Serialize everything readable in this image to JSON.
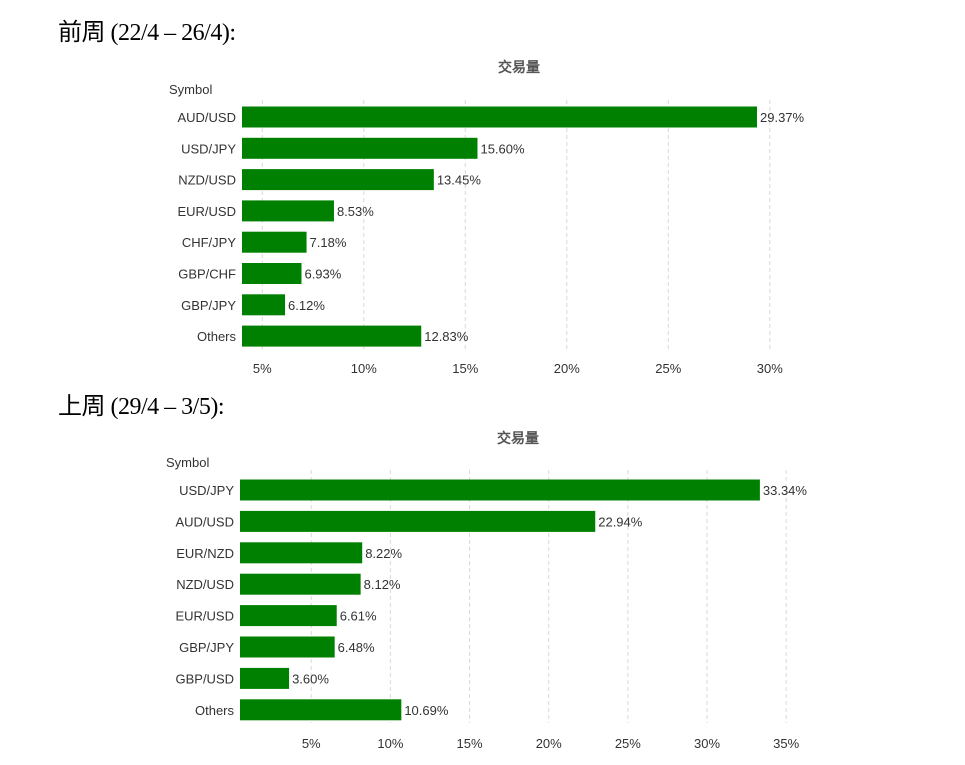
{
  "headings": {
    "previous_week": "前周 (22/4 – 26/4):",
    "last_week": "上周 (29/4 – 3/5):"
  },
  "colors": {
    "bar": "#008000",
    "grid": "#d9d9d9",
    "label": "#333333"
  },
  "chart_data": [
    {
      "type": "bar",
      "orientation": "horizontal",
      "title": "交易量",
      "ylabel": "Symbol",
      "xlabel": "",
      "unit": "%",
      "categories": [
        "AUD/USD",
        "USD/JPY",
        "NZD/USD",
        "EUR/USD",
        "CHF/JPY",
        "GBP/CHF",
        "GBP/JPY",
        "Others"
      ],
      "values": [
        29.37,
        15.6,
        13.45,
        8.53,
        7.18,
        6.93,
        6.12,
        12.83
      ],
      "value_labels": [
        "29.37%",
        "15.60%",
        "13.45%",
        "8.53%",
        "7.18%",
        "6.93%",
        "6.12%",
        "12.83%"
      ],
      "xlim": [
        4,
        30.7
      ],
      "xticks": [
        5,
        10,
        15,
        20,
        25,
        30
      ],
      "xtick_labels": [
        "5%",
        "10%",
        "15%",
        "20%",
        "25%",
        "30%"
      ],
      "grid": true,
      "legend": "none"
    },
    {
      "type": "bar",
      "orientation": "horizontal",
      "title": "交易量",
      "ylabel": "Symbol",
      "xlabel": "",
      "unit": "%",
      "categories": [
        "USD/JPY",
        "AUD/USD",
        "EUR/NZD",
        "NZD/USD",
        "EUR/USD",
        "GBP/JPY",
        "GBP/USD",
        "Others"
      ],
      "values": [
        33.34,
        22.94,
        8.22,
        8.12,
        6.61,
        6.48,
        3.6,
        10.69
      ],
      "value_labels": [
        "33.34%",
        "22.94%",
        "8.22%",
        "8.12%",
        "6.61%",
        "6.48%",
        "3.60%",
        "10.69%"
      ],
      "xlim": [
        0.5,
        36
      ],
      "xticks": [
        5,
        10,
        15,
        20,
        25,
        30,
        35
      ],
      "xtick_labels": [
        "5%",
        "10%",
        "15%",
        "20%",
        "25%",
        "30%",
        "35%"
      ],
      "grid": true,
      "legend": "none"
    }
  ]
}
